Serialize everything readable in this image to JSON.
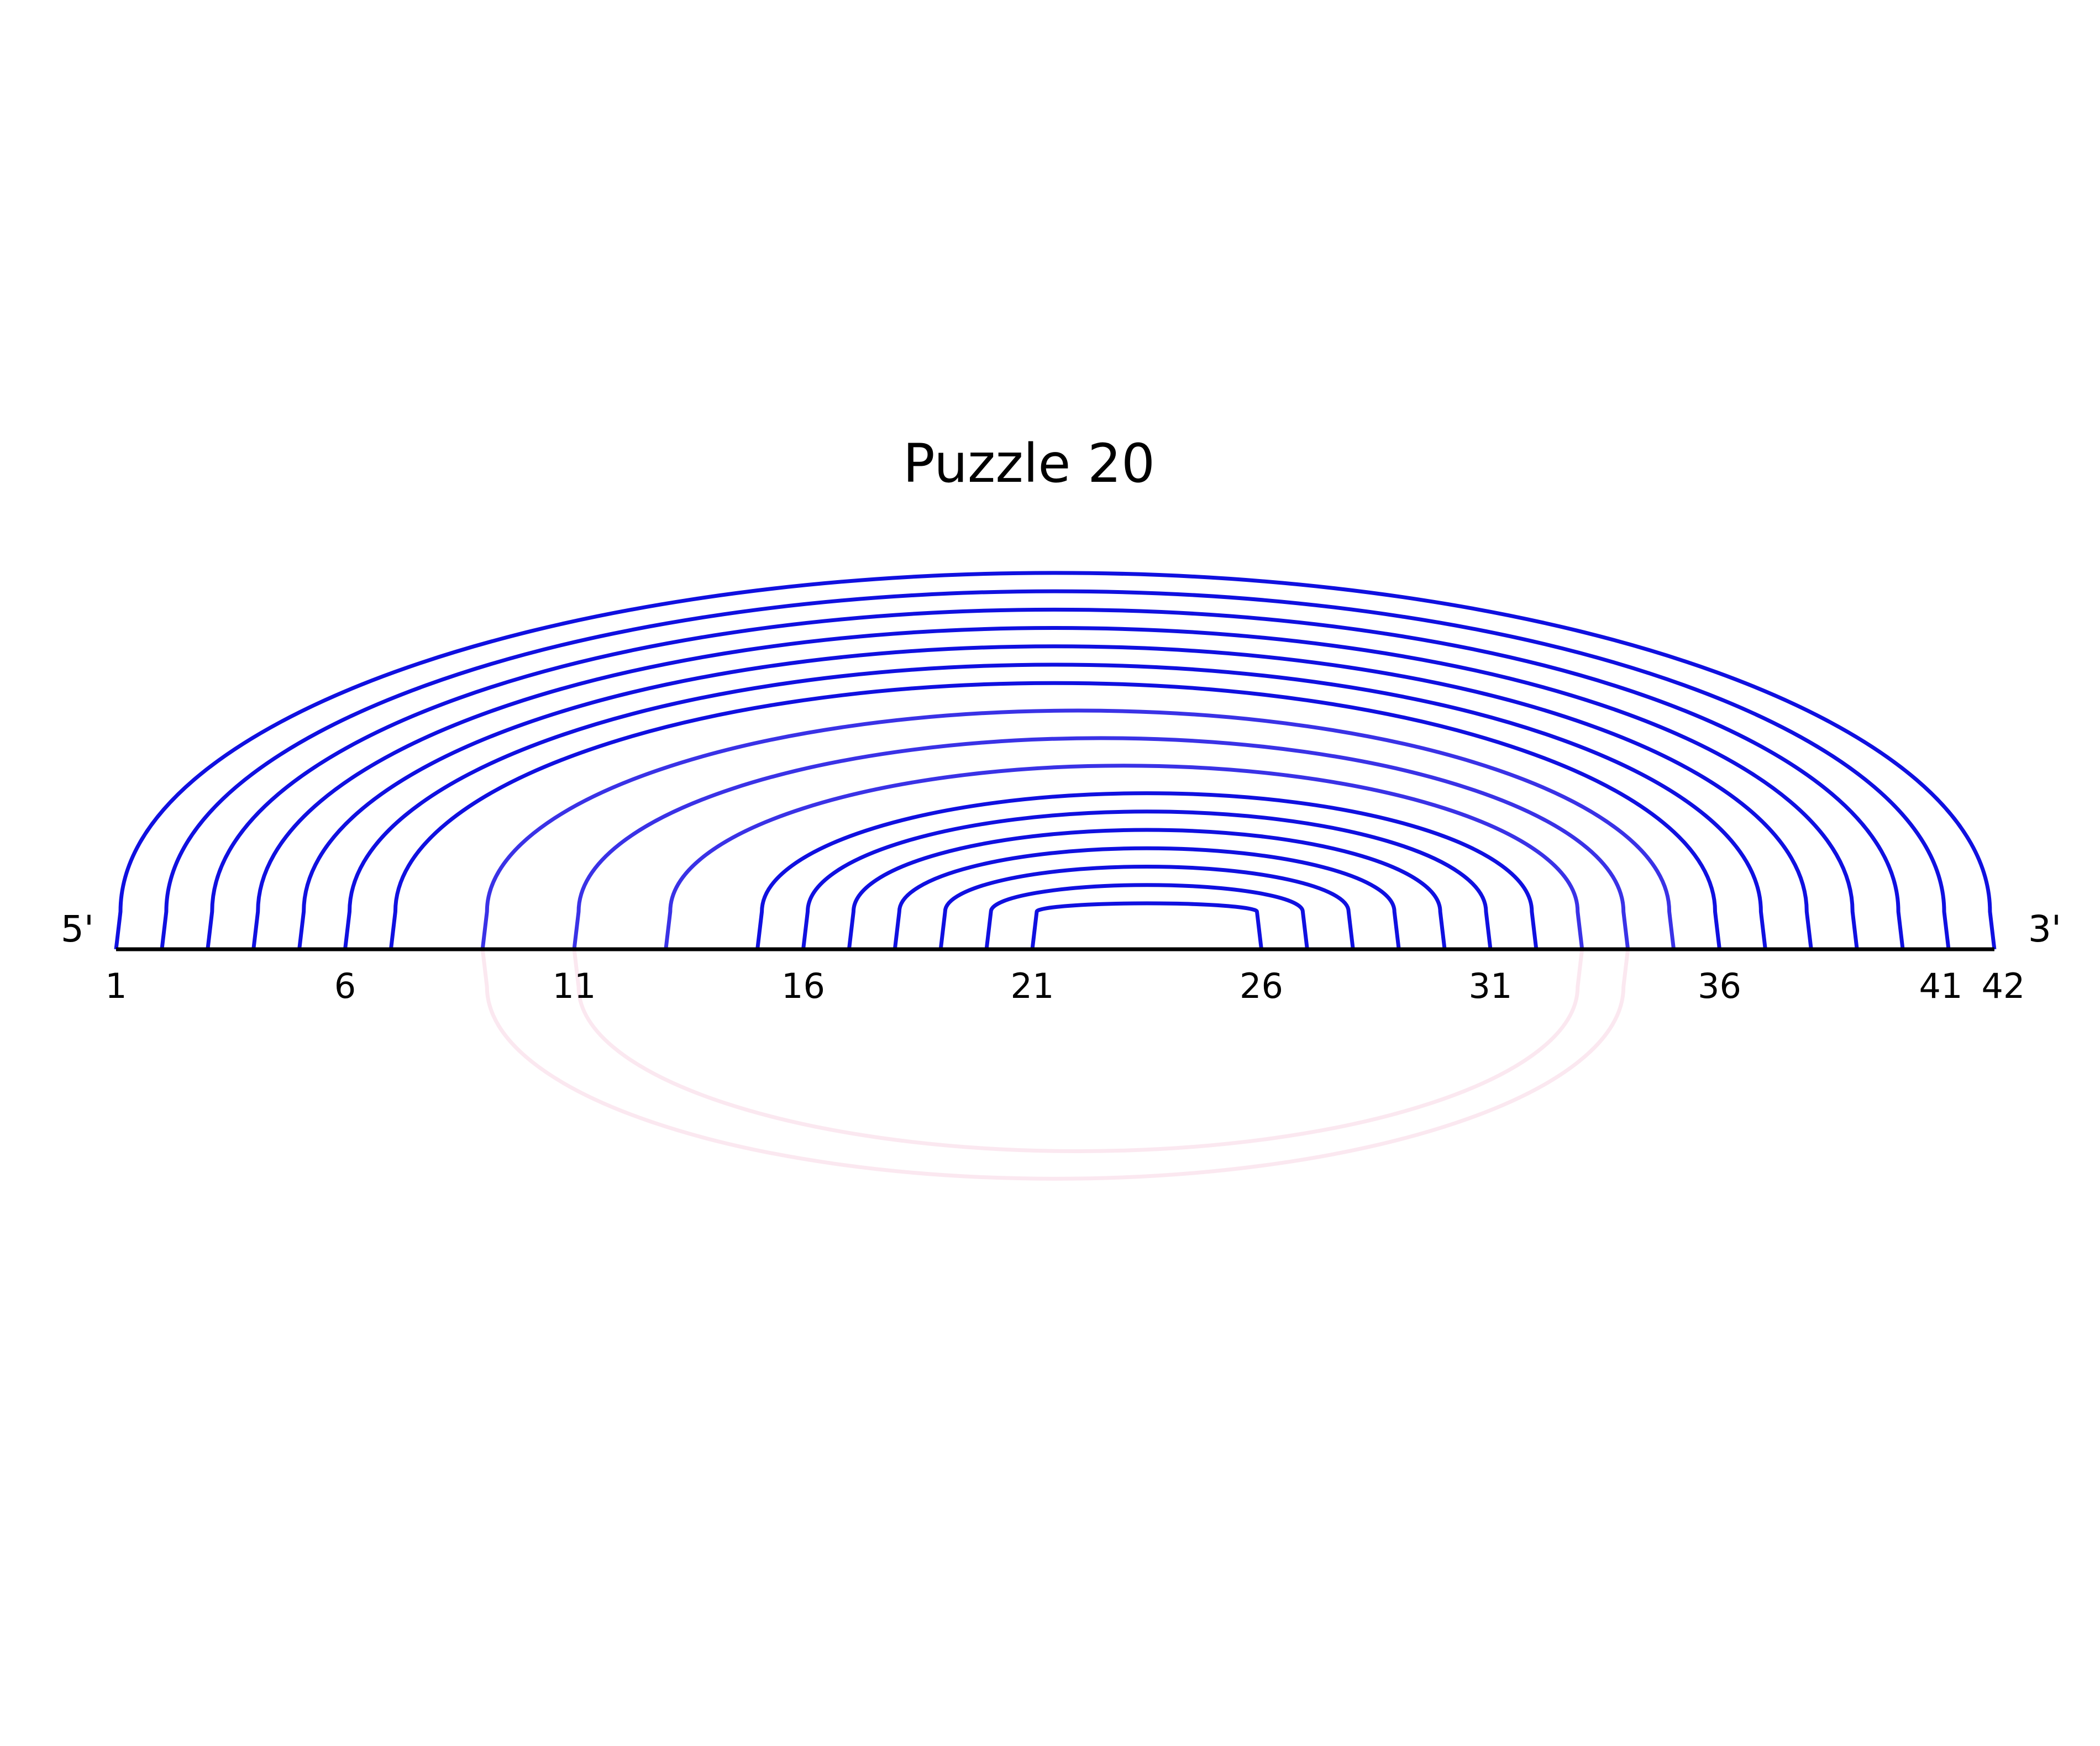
{
  "title": "Puzzle 20",
  "chart_data": {
    "type": "arc-diagram",
    "title": "Puzzle 20",
    "sequence_length": 42,
    "five_prime_label": "5'",
    "three_prime_label": "3'",
    "tick_positions": [
      1,
      6,
      11,
      16,
      21,
      26,
      31,
      36,
      41,
      42
    ],
    "tick_labels": [
      "1",
      "6",
      "11",
      "16",
      "21",
      "26",
      "31",
      "36",
      "41",
      "42"
    ],
    "arcs_above": [
      {
        "i": 1,
        "j": 42
      },
      {
        "i": 2,
        "j": 41
      },
      {
        "i": 3,
        "j": 40
      },
      {
        "i": 4,
        "j": 39
      },
      {
        "i": 5,
        "j": 38
      },
      {
        "i": 6,
        "j": 37
      },
      {
        "i": 7,
        "j": 36
      },
      {
        "i": 9,
        "j": 35
      },
      {
        "i": 11,
        "j": 34
      },
      {
        "i": 13,
        "j": 33
      },
      {
        "i": 15,
        "j": 32
      },
      {
        "i": 16,
        "j": 31
      },
      {
        "i": 17,
        "j": 30
      },
      {
        "i": 18,
        "j": 29
      },
      {
        "i": 19,
        "j": 28
      },
      {
        "i": 20,
        "j": 27
      },
      {
        "i": 21,
        "j": 26
      }
    ],
    "arcs_below": [
      {
        "i": 9,
        "j": 34
      },
      {
        "i": 11,
        "j": 33
      }
    ],
    "colors": {
      "arc_strong": "#1010e0",
      "arc_soft": "#3a32e6",
      "arc_below": "#fbe8f0",
      "baseline": "#000000",
      "text": "#000000"
    }
  }
}
